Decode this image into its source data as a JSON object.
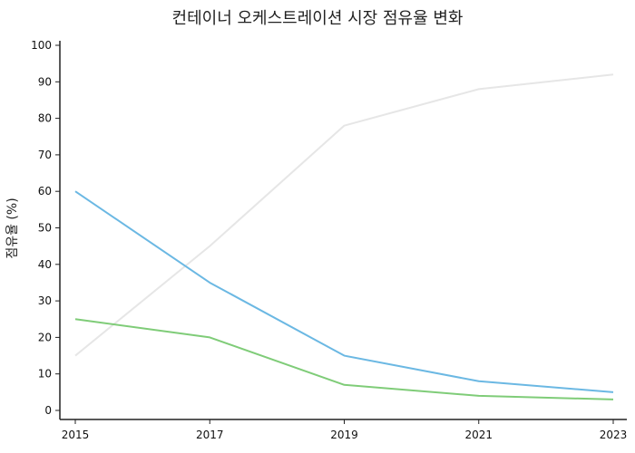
{
  "chart_data": {
    "type": "line",
    "title": "컨테이너 오케스트레이션 시장 점유율 변화",
    "xlabel": "",
    "ylabel": "점유율 (%)",
    "x": [
      "2015",
      "2017",
      "2019",
      "2021",
      "2023"
    ],
    "ylim": [
      0,
      100
    ],
    "yticks": [
      0,
      10,
      20,
      30,
      40,
      50,
      60,
      70,
      80,
      90,
      100
    ],
    "grid": false,
    "legend": "none",
    "series": [
      {
        "values": [
          15,
          45,
          78,
          88,
          92
        ],
        "color": "#e6e6e6"
      },
      {
        "values": [
          60,
          35,
          15,
          8,
          5
        ],
        "color": "#6bb8e3"
      },
      {
        "values": [
          25,
          20,
          7,
          4,
          3
        ],
        "color": "#7fcc78"
      }
    ]
  }
}
